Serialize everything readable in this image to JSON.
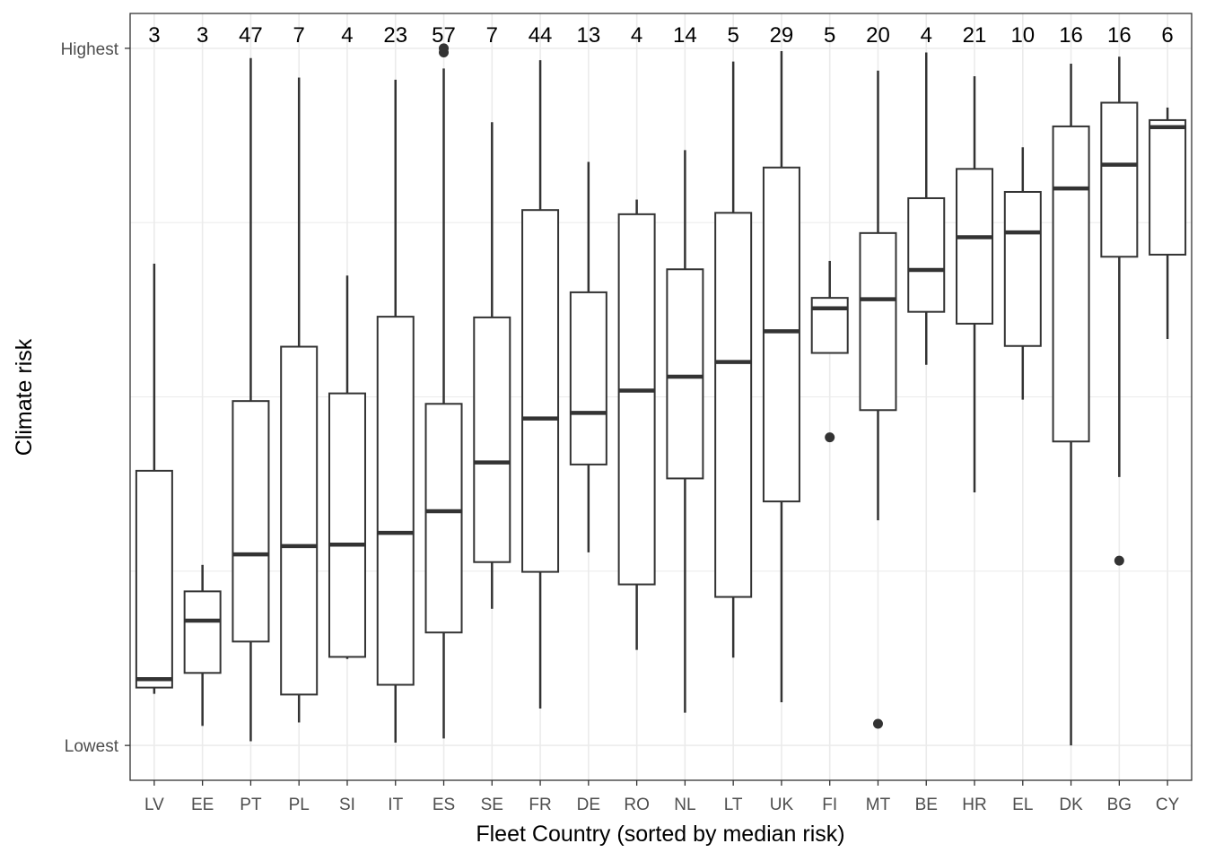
{
  "chart_data": {
    "type": "box",
    "title": "",
    "xlabel": "Fleet Country (sorted by median risk)",
    "ylabel": "Climate risk",
    "ylim": [
      -0.05,
      1.05
    ],
    "y_tick_labels": [
      {
        "value": 0,
        "label": "Lowest"
      },
      {
        "value": 1,
        "label": "Highest"
      }
    ],
    "grid": true,
    "colors": {
      "box_stroke": "#333333",
      "grid": "#ebebeb",
      "panel_border": "#333333"
    },
    "categories": [
      "LV",
      "EE",
      "PT",
      "PL",
      "SI",
      "IT",
      "ES",
      "SE",
      "FR",
      "DE",
      "RO",
      "NL",
      "LT",
      "UK",
      "FI",
      "MT",
      "BE",
      "HR",
      "EL",
      "DK",
      "BG",
      "CY"
    ],
    "counts": [
      "3",
      "3",
      "47",
      "7",
      "4",
      "23",
      "57",
      "7",
      "44",
      "13",
      "4",
      "14",
      "5",
      "29",
      "5",
      "20",
      "4",
      "21",
      "10",
      "16",
      "16",
      "6"
    ],
    "boxes": [
      {
        "low": 0.074,
        "q1": 0.083,
        "median": 0.095,
        "q3": 0.394,
        "high": 0.691,
        "outliers": []
      },
      {
        "low": 0.028,
        "q1": 0.104,
        "median": 0.179,
        "q3": 0.221,
        "high": 0.259,
        "outliers": []
      },
      {
        "low": 0.006,
        "q1": 0.149,
        "median": 0.274,
        "q3": 0.494,
        "high": 0.986,
        "outliers": []
      },
      {
        "low": 0.033,
        "q1": 0.073,
        "median": 0.286,
        "q3": 0.572,
        "high": 0.958,
        "outliers": []
      },
      {
        "low": 0.124,
        "q1": 0.127,
        "median": 0.288,
        "q3": 0.505,
        "high": 0.674,
        "outliers": []
      },
      {
        "low": 0.004,
        "q1": 0.087,
        "median": 0.305,
        "q3": 0.615,
        "high": 0.955,
        "outliers": []
      },
      {
        "low": 0.01,
        "q1": 0.162,
        "median": 0.336,
        "q3": 0.49,
        "high": 0.971,
        "outliers": [
          1.0,
          0.994
        ]
      },
      {
        "low": 0.196,
        "q1": 0.263,
        "median": 0.406,
        "q3": 0.614,
        "high": 0.894,
        "outliers": []
      },
      {
        "low": 0.053,
        "q1": 0.249,
        "median": 0.469,
        "q3": 0.768,
        "high": 0.983,
        "outliers": []
      },
      {
        "low": 0.277,
        "q1": 0.403,
        "median": 0.477,
        "q3": 0.65,
        "high": 0.837,
        "outliers": []
      },
      {
        "low": 0.137,
        "q1": 0.231,
        "median": 0.509,
        "q3": 0.762,
        "high": 0.783,
        "outliers": []
      },
      {
        "low": 0.047,
        "q1": 0.383,
        "median": 0.529,
        "q3": 0.683,
        "high": 0.854,
        "outliers": []
      },
      {
        "low": 0.126,
        "q1": 0.213,
        "median": 0.55,
        "q3": 0.764,
        "high": 0.981,
        "outliers": []
      },
      {
        "low": 0.062,
        "q1": 0.35,
        "median": 0.594,
        "q3": 0.829,
        "high": 0.996,
        "outliers": []
      },
      {
        "low": 0.563,
        "q1": 0.563,
        "median": 0.627,
        "q3": 0.642,
        "high": 0.695,
        "outliers": [
          0.442
        ]
      },
      {
        "low": 0.323,
        "q1": 0.481,
        "median": 0.64,
        "q3": 0.735,
        "high": 0.968,
        "outliers": [
          0.031
        ]
      },
      {
        "low": 0.546,
        "q1": 0.622,
        "median": 0.682,
        "q3": 0.785,
        "high": 0.994,
        "outliers": []
      },
      {
        "low": 0.363,
        "q1": 0.605,
        "median": 0.729,
        "q3": 0.827,
        "high": 0.96,
        "outliers": []
      },
      {
        "low": 0.496,
        "q1": 0.573,
        "median": 0.736,
        "q3": 0.794,
        "high": 0.858,
        "outliers": []
      },
      {
        "low": 0.0,
        "q1": 0.436,
        "median": 0.799,
        "q3": 0.888,
        "high": 0.978,
        "outliers": []
      },
      {
        "low": 0.385,
        "q1": 0.701,
        "median": 0.833,
        "q3": 0.922,
        "high": 0.988,
        "outliers": [
          0.265
        ]
      },
      {
        "low": 0.583,
        "q1": 0.704,
        "median": 0.887,
        "q3": 0.897,
        "high": 0.915,
        "outliers": []
      }
    ]
  }
}
